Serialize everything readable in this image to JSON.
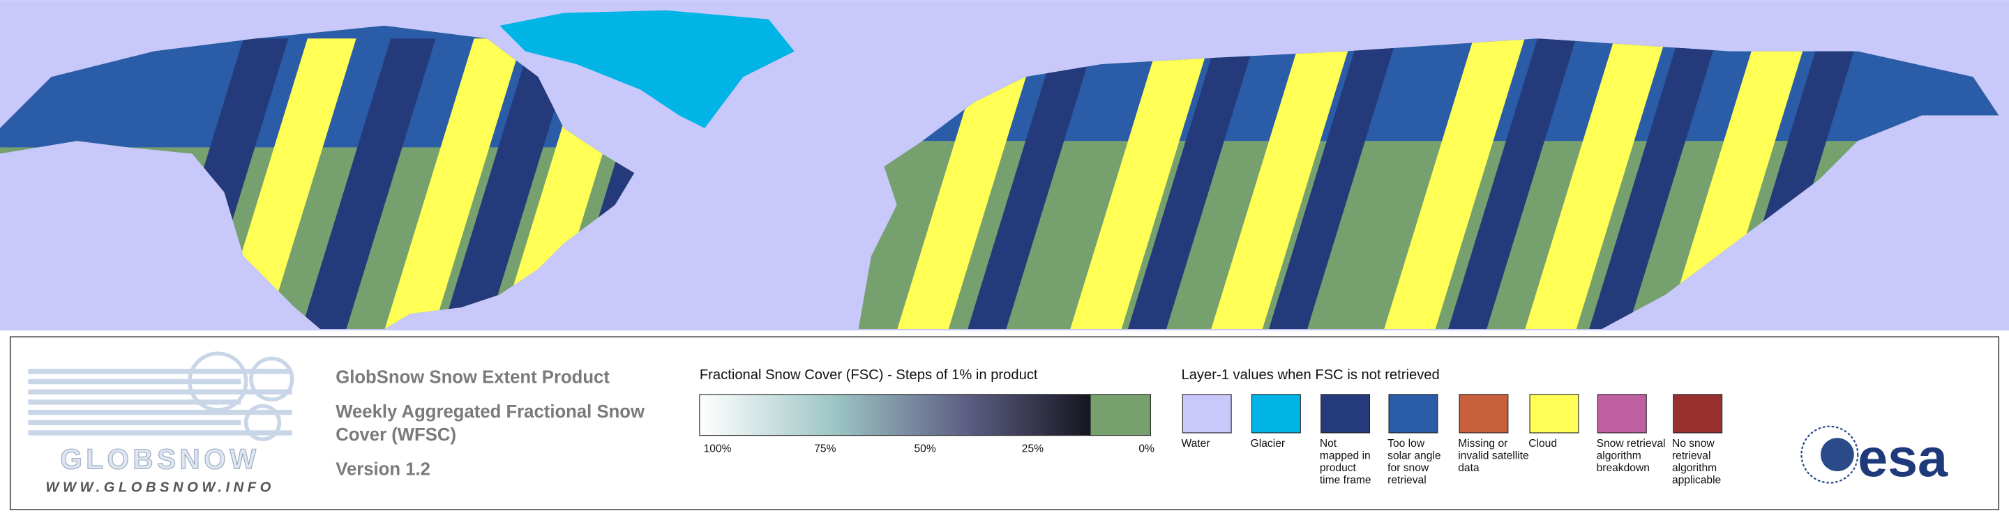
{
  "logo": {
    "name": "GLOBSNOW",
    "url": "WWW.GLOBSNOW.INFO"
  },
  "product": {
    "title": "GlobSnow Snow Extent Product",
    "subtitle_lines": [
      "Weekly Aggregated Fractional Snow",
      "Cover (WFSC)"
    ],
    "version": "Version 1.2"
  },
  "colorbar": {
    "label": "Fractional Snow Cover (FSC) - Steps of 1% in product",
    "ticks": [
      "100%",
      "75%",
      "50%",
      "25%",
      "0%"
    ]
  },
  "layer1": {
    "heading": "Layer-1 values when FSC is not retrieved",
    "items": [
      {
        "color": "#c8c8fa",
        "label_lines": [
          "Water"
        ]
      },
      {
        "color": "#00b4e6",
        "label_lines": [
          "Glacier"
        ]
      },
      {
        "color": "#253a7a",
        "label_lines": [
          "Not",
          "mapped in",
          "product",
          "time frame"
        ]
      },
      {
        "color": "#2a5ca8",
        "label_lines": [
          "Too low",
          "solar angle",
          "for snow",
          "retrieval"
        ]
      },
      {
        "color": "#c8603e",
        "label_lines": [
          "Missing or",
          "invalid satellite",
          "data"
        ]
      },
      {
        "color": "#ffff55",
        "label_lines": [
          "Cloud"
        ]
      },
      {
        "color": "#c060a0",
        "label_lines": [
          "Snow retrieval",
          "algorithm",
          "breakdown"
        ]
      },
      {
        "color": "#993030",
        "label_lines": [
          "No snow",
          "retrieval",
          "algorithm",
          "applicable"
        ]
      }
    ]
  },
  "esa": "esa"
}
